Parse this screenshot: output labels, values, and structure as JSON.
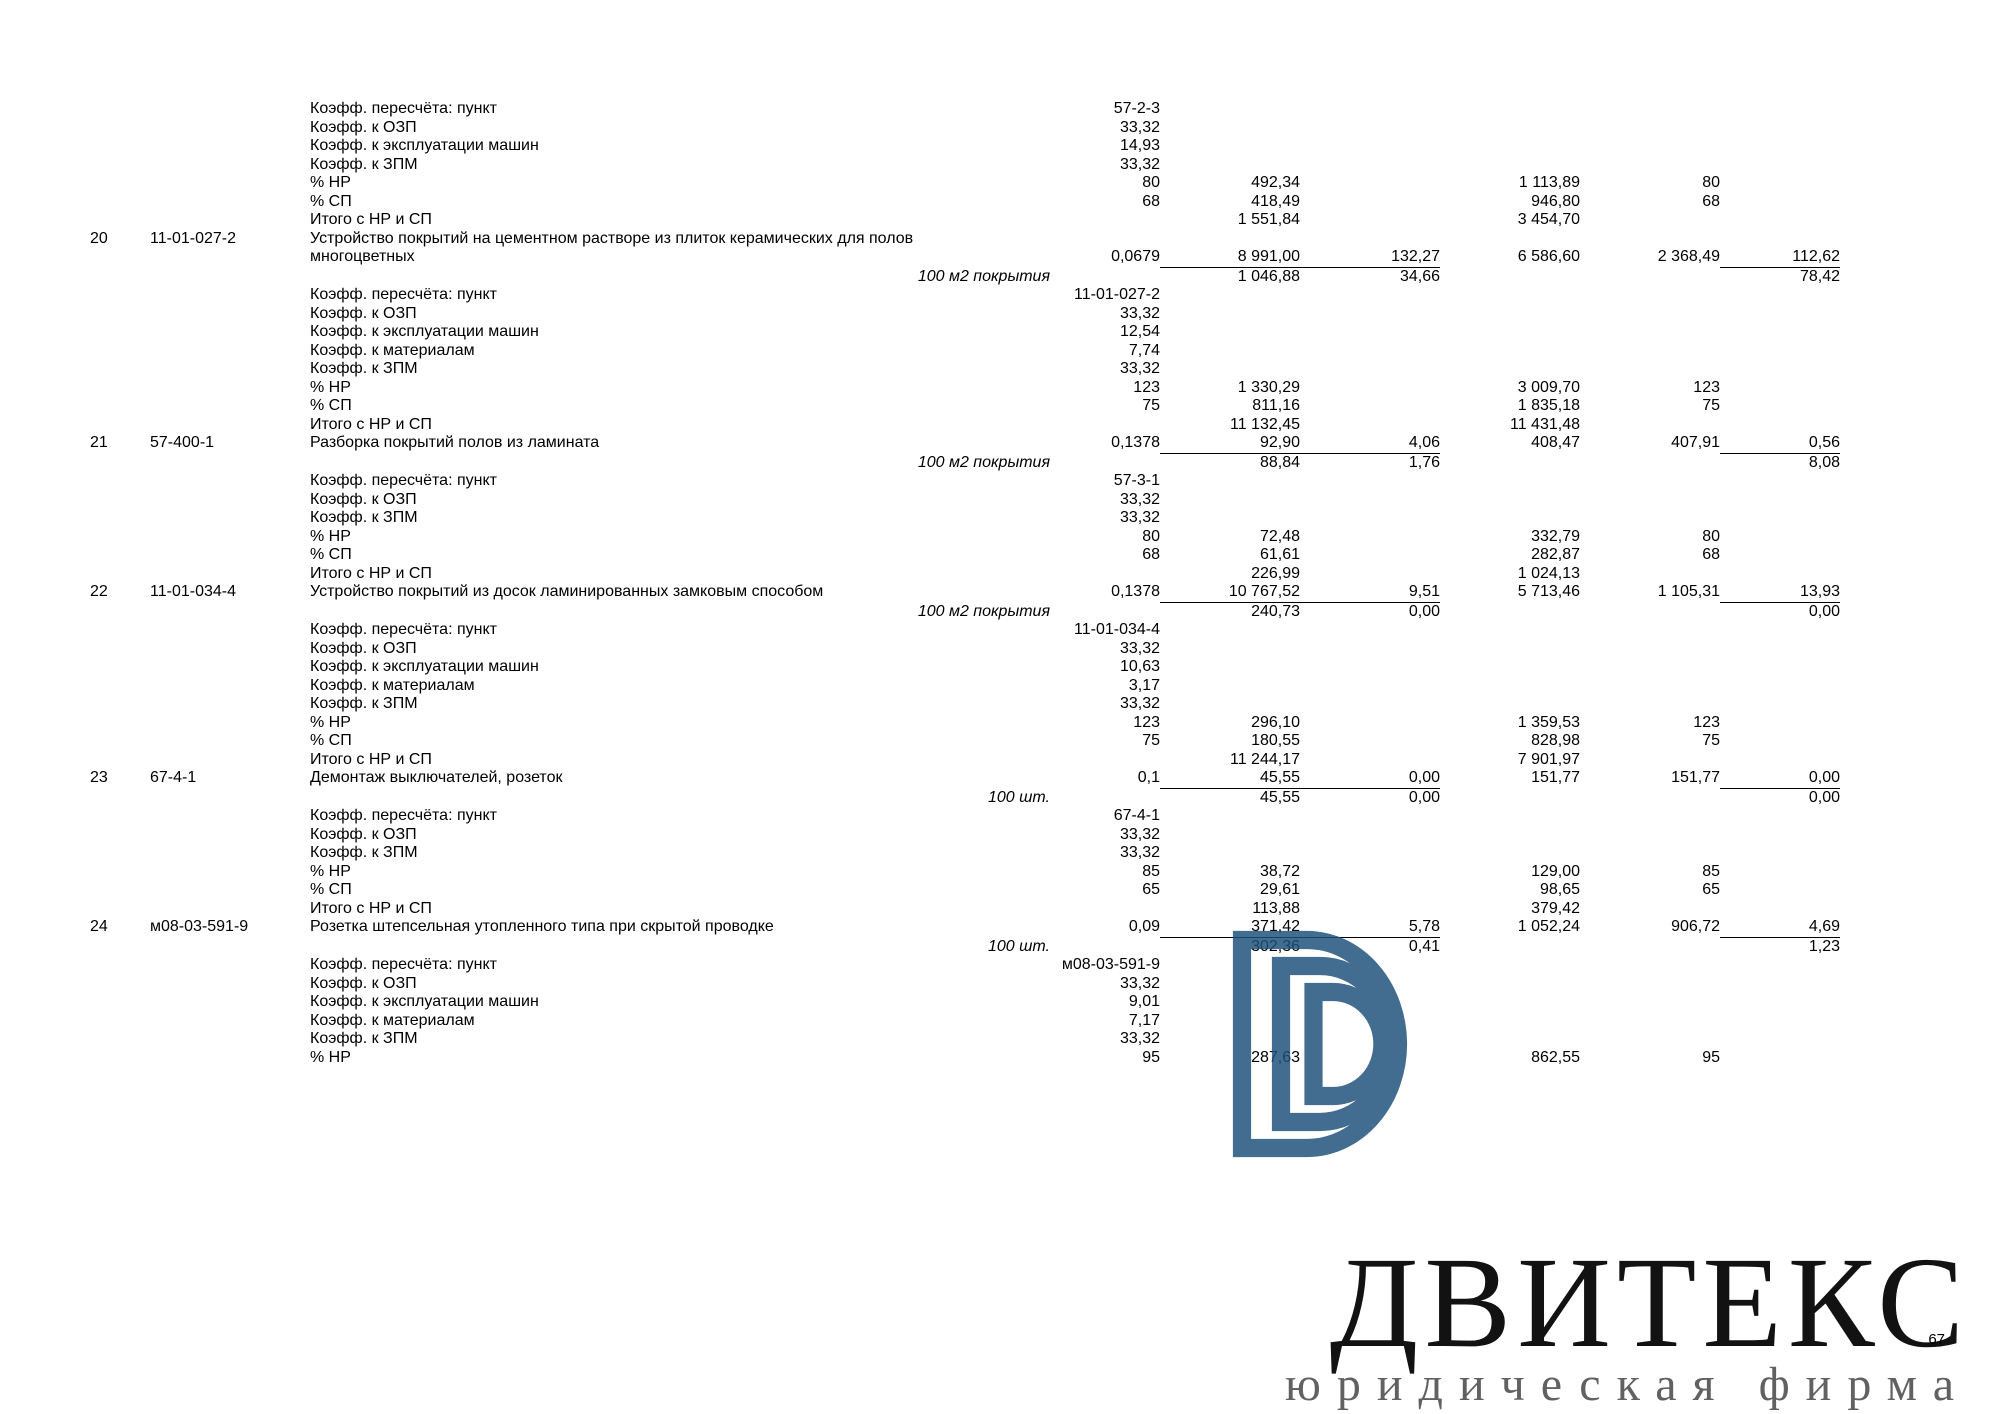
{
  "page_number": "67",
  "watermark": {
    "title": "ДВИТЕКС",
    "subtitle": "юридическая фирма",
    "logo_color": "#1d4f7b"
  },
  "estimate": {
    "items": [
      {
        "sublines": [
          {
            "desc": "Коэфф. пересчёта: пункт",
            "q": "57-2-3"
          },
          {
            "desc": "Коэфф. к ОЗП",
            "q": "33,32"
          },
          {
            "desc": "Коэфф. к эксплуатации машин",
            "q": "14,93"
          },
          {
            "desc": "Коэфф. к ЗПМ",
            "q": "33,32"
          },
          {
            "desc": "% НР",
            "q": "80",
            "v1": "492,34",
            "v3": "1 113,89",
            "v4": "80"
          },
          {
            "desc": "% СП",
            "q": "68",
            "v1": "418,49",
            "v3": "946,80",
            "v4": "68"
          },
          {
            "desc": "Итого с НР и СП",
            "v1": "1 551,84",
            "v3": "3 454,70"
          }
        ]
      },
      {
        "idx": "20",
        "code": "11-01-027-2",
        "title": "Устройство покрытий на цементном растворе из плиток керамических для полов многоцветных",
        "unit": "100 м2 покрытия",
        "main": {
          "q": "0,0679",
          "v1": "8 991,00",
          "v2": "132,27",
          "v3": "6 586,60",
          "v4": "2 368,49",
          "v5": "112,62",
          "u1": true,
          "u2": true,
          "u5": true
        },
        "main2": {
          "v1": "1 046,88",
          "v2": "34,66",
          "v5": "78,42"
        },
        "sublines": [
          {
            "desc": "Коэфф. пересчёта: пункт",
            "q": "11-01-027-2"
          },
          {
            "desc": "Коэфф. к ОЗП",
            "q": "33,32"
          },
          {
            "desc": "Коэфф. к эксплуатации машин",
            "q": "12,54"
          },
          {
            "desc": "Коэфф. к материалам",
            "q": "7,74"
          },
          {
            "desc": "Коэфф. к ЗПМ",
            "q": "33,32"
          },
          {
            "desc": "% НР",
            "q": "123",
            "v1": "1 330,29",
            "v3": "3 009,70",
            "v4": "123"
          },
          {
            "desc": "% СП",
            "q": "75",
            "v1": "811,16",
            "v3": "1 835,18",
            "v4": "75"
          },
          {
            "desc": "Итого с НР и СП",
            "v1": "11 132,45",
            "v3": "11 431,48"
          }
        ]
      },
      {
        "idx": "21",
        "code": "57-400-1",
        "title": "Разборка покрытий полов из ламината",
        "unit": "100 м2 покрытия",
        "main": {
          "q": "0,1378",
          "v1": "92,90",
          "v2": "4,06",
          "v3": "408,47",
          "v4": "407,91",
          "v5": "0,56",
          "u1": true,
          "u2": true,
          "u5": true
        },
        "main2": {
          "v1": "88,84",
          "v2": "1,76",
          "v5": "8,08"
        },
        "sublines": [
          {
            "desc": "Коэфф. пересчёта: пункт",
            "q": "57-3-1"
          },
          {
            "desc": "Коэфф. к ОЗП",
            "q": "33,32"
          },
          {
            "desc": "Коэфф. к ЗПМ",
            "q": "33,32"
          },
          {
            "desc": "% НР",
            "q": "80",
            "v1": "72,48",
            "v3": "332,79",
            "v4": "80"
          },
          {
            "desc": "% СП",
            "q": "68",
            "v1": "61,61",
            "v3": "282,87",
            "v4": "68"
          },
          {
            "desc": "Итого с НР и СП",
            "v1": "226,99",
            "v3": "1 024,13"
          }
        ]
      },
      {
        "idx": "22",
        "code": "11-01-034-4",
        "title": "Устройство покрытий из досок ламинированных замковым способом",
        "unit": "100 м2 покрытия",
        "main": {
          "q": "0,1378",
          "v1": "10 767,52",
          "v2": "9,51",
          "v3": "5 713,46",
          "v4": "1 105,31",
          "v5": "13,93",
          "u1": true,
          "u2": true,
          "u5": true
        },
        "main2": {
          "v1": "240,73",
          "v2": "0,00",
          "v5": "0,00"
        },
        "sublines": [
          {
            "desc": "Коэфф. пересчёта: пункт",
            "q": "11-01-034-4"
          },
          {
            "desc": "Коэфф. к ОЗП",
            "q": "33,32"
          },
          {
            "desc": "Коэфф. к эксплуатации машин",
            "q": "10,63"
          },
          {
            "desc": "Коэфф. к материалам",
            "q": "3,17"
          },
          {
            "desc": "Коэфф. к ЗПМ",
            "q": "33,32"
          },
          {
            "desc": "% НР",
            "q": "123",
            "v1": "296,10",
            "v3": "1 359,53",
            "v4": "123"
          },
          {
            "desc": "% СП",
            "q": "75",
            "v1": "180,55",
            "v3": "828,98",
            "v4": "75"
          },
          {
            "desc": "Итого с НР и СП",
            "v1": "11 244,17",
            "v3": "7 901,97"
          }
        ]
      },
      {
        "idx": "23",
        "code": "67-4-1",
        "title": "Демонтаж выключателей, розеток",
        "unit": "100 шт.",
        "main": {
          "q": "0,1",
          "v1": "45,55",
          "v2": "0,00",
          "v3": "151,77",
          "v4": "151,77",
          "v5": "0,00",
          "u1": true,
          "u2": true,
          "u5": true
        },
        "main2": {
          "v1": "45,55",
          "v2": "0,00",
          "v5": "0,00"
        },
        "sublines": [
          {
            "desc": "Коэфф. пересчёта: пункт",
            "q": "67-4-1"
          },
          {
            "desc": "Коэфф. к ОЗП",
            "q": "33,32"
          },
          {
            "desc": "Коэфф. к ЗПМ",
            "q": "33,32"
          },
          {
            "desc": "% НР",
            "q": "85",
            "v1": "38,72",
            "v3": "129,00",
            "v4": "85"
          },
          {
            "desc": "% СП",
            "q": "65",
            "v1": "29,61",
            "v3": "98,65",
            "v4": "65"
          },
          {
            "desc": "Итого с НР и СП",
            "v1": "113,88",
            "v3": "379,42"
          }
        ]
      },
      {
        "idx": "24",
        "code": "м08-03-591-9",
        "title": "Розетка штепсельная утопленного типа при скрытой проводке",
        "unit": "100 шт.",
        "main": {
          "q": "0,09",
          "v1": "371,42",
          "v2": "5,78",
          "v3": "1 052,24",
          "v4": "906,72",
          "v5": "4,69",
          "u1": true,
          "u2": true,
          "u5": true
        },
        "main2": {
          "v1": "302,36",
          "v2": "0,41",
          "v5": "1,23"
        },
        "sublines": [
          {
            "desc": "Коэфф. пересчёта: пункт",
            "q": "м08-03-591-9"
          },
          {
            "desc": "Коэфф. к ОЗП",
            "q": "33,32"
          },
          {
            "desc": "Коэфф. к эксплуатации машин",
            "q": "9,01"
          },
          {
            "desc": "Коэфф. к материалам",
            "q": "7,17"
          },
          {
            "desc": "Коэфф. к ЗПМ",
            "q": "33,32"
          },
          {
            "desc": "% НР",
            "q": "95",
            "v1": "287,63",
            "v3": "862,55",
            "v4": "95"
          }
        ]
      }
    ]
  }
}
